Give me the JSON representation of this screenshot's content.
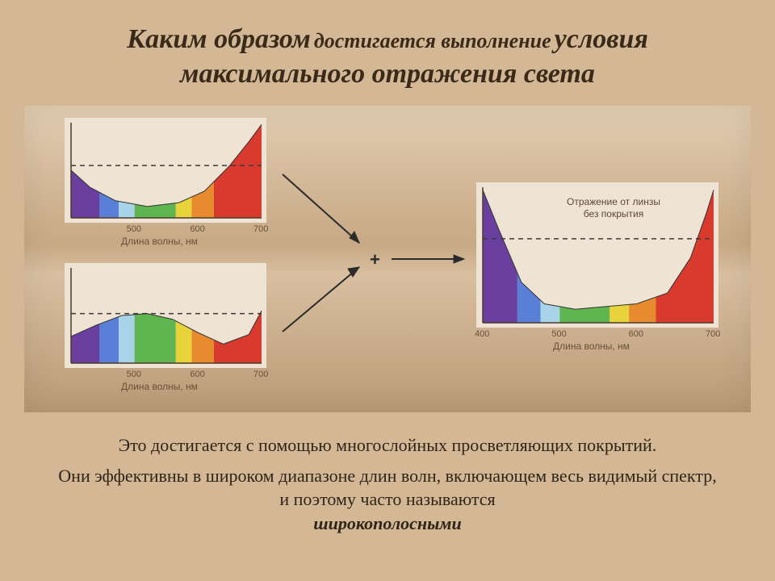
{
  "title": {
    "l1a": "Каким образом",
    "l1b": "достигается выполнение",
    "l1c": "условия",
    "l2": "максимального отражения света"
  },
  "charts": {
    "axis_label": "Длина волны, нм",
    "right_label_l1": "Отражение от линзы",
    "right_label_l2": "без покрытия",
    "ticks_small": [
      "500",
      "600",
      "700"
    ],
    "ticks_right": [
      "400",
      "500",
      "600",
      "700"
    ],
    "spectrum_bands": [
      {
        "from": 400,
        "to": 445,
        "color": "#6b3fa0"
      },
      {
        "from": 445,
        "to": 475,
        "color": "#5a7fd6"
      },
      {
        "from": 475,
        "to": 500,
        "color": "#a9d3e8"
      },
      {
        "from": 500,
        "to": 565,
        "color": "#5fb651"
      },
      {
        "from": 565,
        "to": 590,
        "color": "#e8d33a"
      },
      {
        "from": 590,
        "to": 625,
        "color": "#e88a2e"
      },
      {
        "from": 625,
        "to": 700,
        "color": "#d83a2e"
      }
    ],
    "top_curve": {
      "xmin": 400,
      "xmax": 700,
      "pts": [
        [
          400,
          0.5
        ],
        [
          430,
          0.32
        ],
        [
          470,
          0.18
        ],
        [
          520,
          0.12
        ],
        [
          570,
          0.16
        ],
        [
          610,
          0.28
        ],
        [
          650,
          0.55
        ],
        [
          680,
          0.8
        ],
        [
          700,
          0.98
        ]
      ],
      "dash_y": 0.55
    },
    "bottom_curve": {
      "xmin": 400,
      "xmax": 700,
      "pts": [
        [
          400,
          0.28
        ],
        [
          440,
          0.4
        ],
        [
          480,
          0.5
        ],
        [
          520,
          0.52
        ],
        [
          560,
          0.46
        ],
        [
          600,
          0.32
        ],
        [
          640,
          0.2
        ],
        [
          680,
          0.3
        ],
        [
          700,
          0.55
        ]
      ],
      "dash_y": 0.52
    },
    "right_curve": {
      "xmin": 400,
      "xmax": 700,
      "pts": [
        [
          400,
          0.98
        ],
        [
          420,
          0.7
        ],
        [
          450,
          0.3
        ],
        [
          480,
          0.14
        ],
        [
          520,
          0.1
        ],
        [
          560,
          0.12
        ],
        [
          600,
          0.14
        ],
        [
          640,
          0.22
        ],
        [
          670,
          0.48
        ],
        [
          690,
          0.8
        ],
        [
          700,
          0.98
        ]
      ],
      "dash_y": 0.62
    },
    "chart_bg": "#efe4d3",
    "axis_color": "#4a3a28",
    "dash_color": "#3a3a3a",
    "small_w": 250,
    "small_h": 130,
    "right_w": 300,
    "right_h": 180
  },
  "body": {
    "p1": "Это достигается с помощью многослойных просветляющих покрытий.",
    "p2a": "Они эффективны в широком диапазоне длин волн, включающем весь видимый спектр, и поэтому часто называются",
    "p2b": "широкополосными"
  },
  "plus_symbol": "+"
}
